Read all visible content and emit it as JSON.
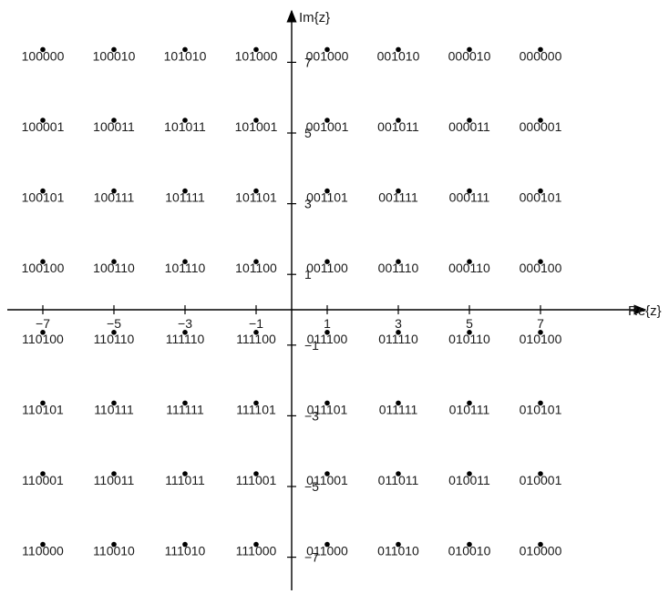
{
  "diagram": {
    "x_axis_label": "Re{z}",
    "y_axis_label": "Im{z}",
    "x_ticks": [
      "−7",
      "−5",
      "−3",
      "−1",
      "1",
      "3",
      "5",
      "7"
    ],
    "y_ticks": [
      "7",
      "5",
      "3",
      "1",
      "−1",
      "−3",
      "−5",
      "−7"
    ],
    "constellation": {
      "i_levels": [
        -7,
        -5,
        -3,
        -1,
        1,
        3,
        5,
        7
      ],
      "q_levels": [
        7,
        5,
        3,
        1,
        -1,
        -3,
        -5,
        -7
      ],
      "rows": [
        [
          "100000",
          "100010",
          "101010",
          "101000",
          "001000",
          "001010",
          "000010",
          "000000"
        ],
        [
          "100001",
          "100011",
          "101011",
          "101001",
          "001001",
          "001011",
          "000011",
          "000001"
        ],
        [
          "100101",
          "100111",
          "101111",
          "101101",
          "001101",
          "001111",
          "000111",
          "000101"
        ],
        [
          "100100",
          "100110",
          "101110",
          "101100",
          "001100",
          "001110",
          "000110",
          "000100"
        ],
        [
          "110100",
          "110110",
          "111110",
          "111100",
          "011100",
          "011110",
          "010110",
          "010100"
        ],
        [
          "110101",
          "110111",
          "111111",
          "111101",
          "011101",
          "011111",
          "010111",
          "010101"
        ],
        [
          "110001",
          "110011",
          "111011",
          "111001",
          "011001",
          "011011",
          "010011",
          "010001"
        ],
        [
          "110000",
          "110010",
          "111010",
          "111000",
          "011000",
          "011010",
          "010010",
          "010000"
        ]
      ]
    }
  }
}
